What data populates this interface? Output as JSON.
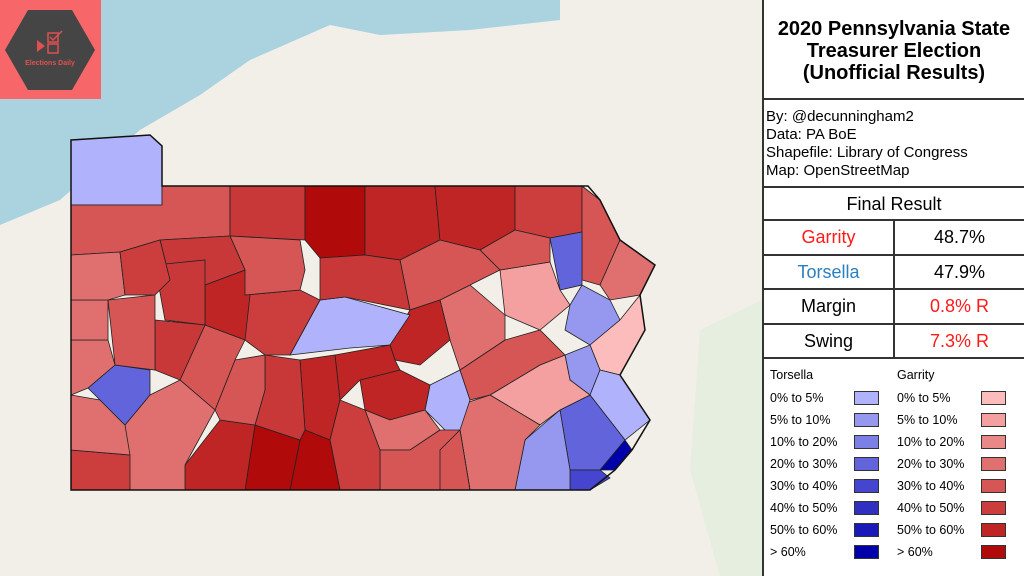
{
  "logo": {
    "text": "Elections Daily"
  },
  "title": [
    "2020 Pennsylvania State",
    "Treasurer Election",
    "(Unofficial Results)"
  ],
  "credits": [
    "By: @decunningham2",
    "Data: PA BoE",
    "Shapefile: Library of Congress",
    "Map: OpenStreetMap"
  ],
  "final_result": {
    "heading": "Final Result",
    "rows": [
      {
        "label": "Garrity",
        "value": "48.7%",
        "label_color": "#ff1a1a",
        "value_color": "#000000"
      },
      {
        "label": "Torsella",
        "value": "47.9%",
        "label_color": "#2a7fc0",
        "value_color": "#000000"
      },
      {
        "label": "Margin",
        "value": "0.8% R",
        "label_color": "#000000",
        "value_color": "#ff1a1a"
      },
      {
        "label": "Swing",
        "value": "7.3% R",
        "label_color": "#000000",
        "value_color": "#ff1a1a"
      }
    ]
  },
  "legend": {
    "torsella": {
      "title": "Torsella",
      "items": [
        {
          "label": "0% to 5%",
          "color": "#b0b3fb"
        },
        {
          "label": "5% to 10%",
          "color": "#9698f0"
        },
        {
          "label": "10% to 20%",
          "color": "#7c80e6"
        },
        {
          "label": "20% to 30%",
          "color": "#6264dc"
        },
        {
          "label": "30% to 40%",
          "color": "#4545d0"
        },
        {
          "label": "40% to 50%",
          "color": "#3030c0"
        },
        {
          "label": "50% to 60%",
          "color": "#1a1ab8"
        },
        {
          "label": "> 60%",
          "color": "#0000aa"
        }
      ]
    },
    "garrity": {
      "title": "Garrity",
      "items": [
        {
          "label": "0% to 5%",
          "color": "#fdbcbc"
        },
        {
          "label": "5% to 10%",
          "color": "#f4a0a0"
        },
        {
          "label": "10% to 20%",
          "color": "#ea8888"
        },
        {
          "label": "20% to 30%",
          "color": "#e07070"
        },
        {
          "label": "30% to 40%",
          "color": "#d65555"
        },
        {
          "label": "40% to 50%",
          "color": "#cc3d3d"
        },
        {
          "label": "50% to 60%",
          "color": "#c02525"
        },
        {
          "label": "> 60%",
          "color": "#b00a0a"
        }
      ]
    }
  }
}
